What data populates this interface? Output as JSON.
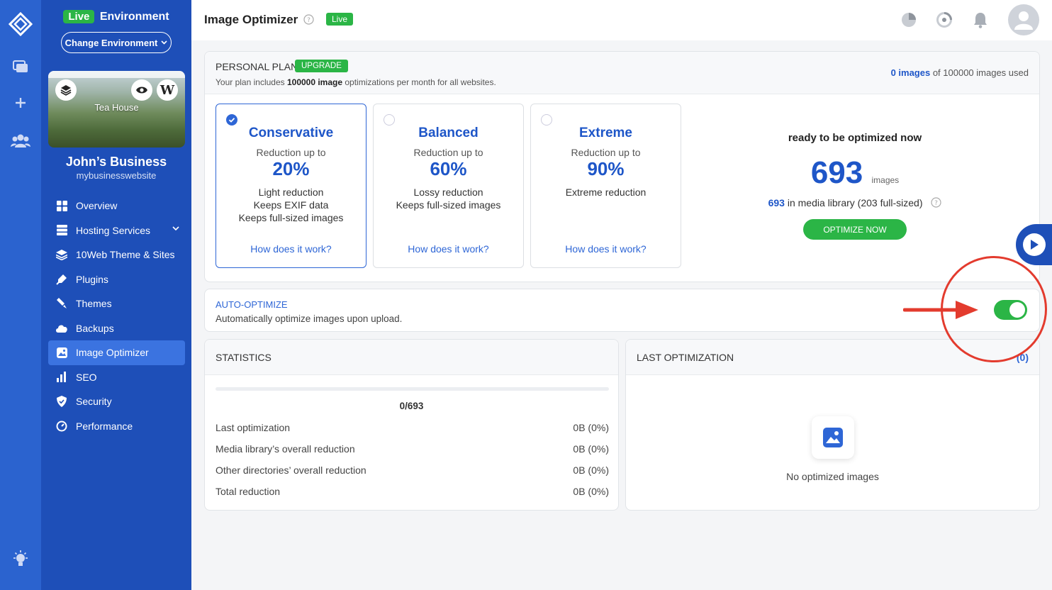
{
  "sidebar": {
    "env_badge": "Live",
    "env_label": "Environment",
    "change_env": "Change Environment",
    "site_title": "Tea House",
    "business_name": "John’s Business",
    "domain": "mybusinesswebsite",
    "nav": [
      {
        "label": "Overview",
        "icon": "overview-icon"
      },
      {
        "label": "Hosting Services",
        "icon": "hosting-icon"
      },
      {
        "label": "10Web Theme & Sites",
        "icon": "layers-icon"
      },
      {
        "label": "Plugins",
        "icon": "plugin-icon"
      },
      {
        "label": "Themes",
        "icon": "brush-icon"
      },
      {
        "label": "Backups",
        "icon": "cloud-icon"
      },
      {
        "label": "Image Optimizer",
        "icon": "image-icon"
      },
      {
        "label": "SEO",
        "icon": "chart-icon"
      },
      {
        "label": "Security",
        "icon": "shield-icon"
      },
      {
        "label": "Performance",
        "icon": "gauge-icon"
      }
    ]
  },
  "header": {
    "title": "Image Optimizer",
    "live": "Live"
  },
  "plan": {
    "name": "PERSONAL PLAN",
    "upgrade": "UPGRADE",
    "desc_pre": "Your plan includes ",
    "desc_count": "100000 image",
    "desc_post": " optimizations per month for all websites.",
    "used_count": "0 images",
    "used_rest": " of 100000 images used",
    "options": [
      {
        "name": "Conservative",
        "reduction_label": "Reduction up to",
        "reduction": "20%",
        "lines": [
          "Light reduction",
          "Keeps EXIF data",
          "Keeps full-sized images"
        ],
        "how": "How does it work?",
        "selected": true
      },
      {
        "name": "Balanced",
        "reduction_label": "Reduction up to",
        "reduction": "60%",
        "lines": [
          "Lossy reduction",
          "Keeps full-sized images"
        ],
        "how": "How does it work?",
        "selected": false
      },
      {
        "name": "Extreme",
        "reduction_label": "Reduction up to",
        "reduction": "90%",
        "lines": [
          "Extreme reduction"
        ],
        "how": "How does it work?",
        "selected": false
      }
    ],
    "ready_title": "ready to be optimized now",
    "ready_count": "693",
    "ready_unit": "images",
    "lib_count": "693",
    "lib_rest": " in media library (203 full-sized)",
    "optimize_btn": "OPTIMIZE NOW"
  },
  "auto": {
    "title": "AUTO-OPTIMIZE",
    "desc": "Automatically optimize images upon upload.",
    "enabled": true
  },
  "stats": {
    "title": "STATISTICS",
    "progress": 0,
    "ratio": "0/693",
    "rows": [
      {
        "label": "Last optimization",
        "value": "0B (0%)"
      },
      {
        "label": "Media library’s overall reduction",
        "value": "0B (0%)"
      },
      {
        "label": "Other directories’ overall reduction",
        "value": "0B (0%)"
      },
      {
        "label": "Total reduction",
        "value": "0B (0%)"
      }
    ]
  },
  "last": {
    "title": "LAST OPTIMIZATION",
    "count": "(0)",
    "empty": "No optimized images"
  },
  "colors": {
    "brand": "#1e4fb8",
    "accent": "#2e66d6",
    "success": "#2bb546",
    "annotation": "#e33b2e"
  }
}
